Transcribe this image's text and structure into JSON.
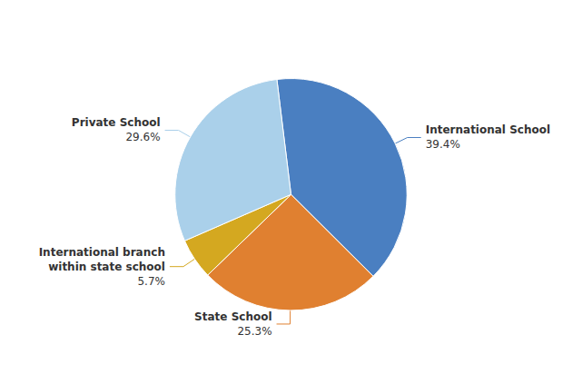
{
  "chart_data": {
    "type": "pie",
    "categories": [
      "International School",
      "State School",
      "International branch\nwithin state school",
      "Private School"
    ],
    "values": [
      39.4,
      25.3,
      5.7,
      29.6
    ],
    "value_labels": [
      "39.4%",
      "25.3%",
      "5.7%",
      "29.6%"
    ],
    "colors": [
      "#4a7fc1",
      "#e08030",
      "#d4a820",
      "#aad0ea"
    ],
    "data_labels": true
  }
}
